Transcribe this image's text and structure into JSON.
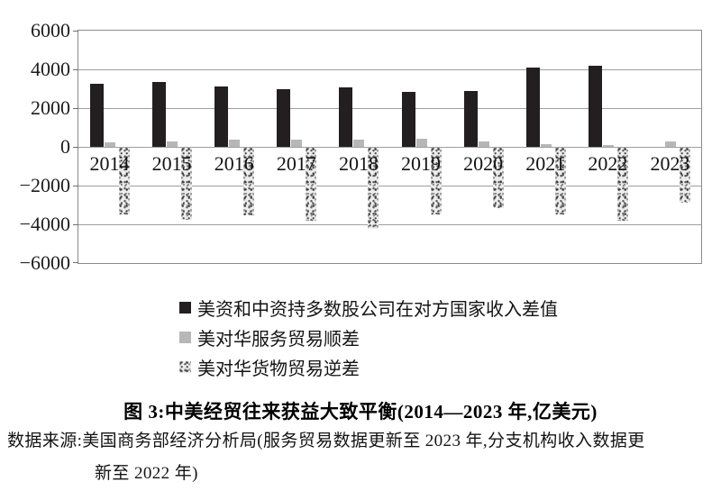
{
  "figure": {
    "caption": "图 3:中美经贸往来获益大致平衡(2014—2023 年,亿美元)",
    "source_line1": "数据来源:美国商务部经济分析局(服务贸易数据更新至 2023 年,分支机构收入数据更",
    "source_line2": "新至 2022 年)"
  },
  "chart_data": {
    "type": "bar",
    "title": "中美经贸往来获益大致平衡(2014—2023年,亿美元)",
    "xlabel": "",
    "ylabel": "",
    "unit": "亿美元",
    "categories": [
      "2014",
      "2015",
      "2016",
      "2017",
      "2018",
      "2019",
      "2020",
      "2021",
      "2022",
      "2023"
    ],
    "series": [
      {
        "key": "income-diff",
        "name": "美资和中资持多数股公司在对方国家收入差值",
        "color": "#231f20",
        "style": "solid",
        "values": [
          3250,
          3350,
          3100,
          3000,
          3080,
          2820,
          2870,
          4100,
          4170,
          null
        ]
      },
      {
        "key": "services-surplus",
        "name": "美对华服务贸易顺差",
        "color": "#b7b7b7",
        "style": "solid",
        "values": [
          250,
          290,
          380,
          390,
          390,
          400,
          280,
          150,
          110,
          280
        ]
      },
      {
        "key": "goods-deficit",
        "name": "美对华货物贸易逆差",
        "color": "#ececec",
        "style": "speckled",
        "values": [
          -3450,
          -3700,
          -3500,
          -3750,
          -4200,
          -3450,
          -3100,
          -3450,
          -3750,
          -2850
        ]
      }
    ],
    "ylim": [
      -6000,
      6000
    ],
    "yticks": [
      {
        "value": 6000,
        "label": "6000"
      },
      {
        "value": 4000,
        "label": "4000"
      },
      {
        "value": 2000,
        "label": "2000"
      },
      {
        "value": 0,
        "label": "0"
      },
      {
        "value": -2000,
        "label": "−2000"
      },
      {
        "value": -4000,
        "label": "−4000"
      },
      {
        "value": -6000,
        "label": "−6000"
      }
    ],
    "grid": true,
    "legend_position": "bottom-left"
  }
}
